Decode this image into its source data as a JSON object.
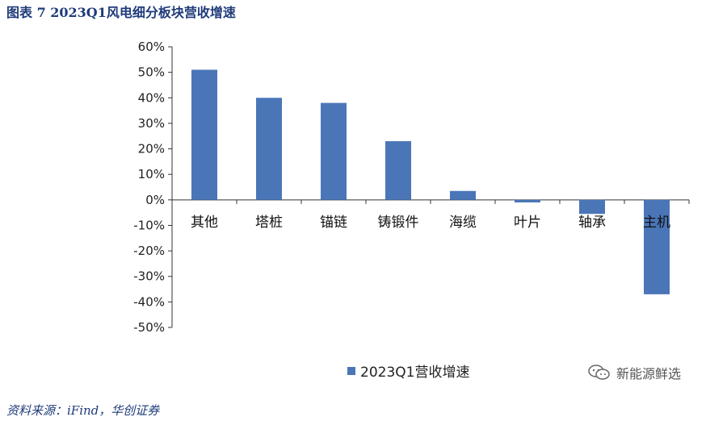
{
  "figure_title": "图表 7  2023Q1风电细分板块营收增速",
  "source": "资料来源：iFind，华创证券",
  "watermark": "新能源鲜选",
  "colors": {
    "bar": "#4a76b8",
    "axis": "#333333",
    "title": "#1f3b7a"
  },
  "chart_data": {
    "type": "bar",
    "categories": [
      "其他",
      "塔桩",
      "锚链",
      "铸锻件",
      "海缆",
      "叶片",
      "轴承",
      "主机"
    ],
    "series": [
      {
        "name": "2023Q1营收增速",
        "values": [
          51,
          40,
          38,
          23,
          3.5,
          -1,
          -5.5,
          -37
        ]
      }
    ],
    "yticks": [
      "60%",
      "50%",
      "40%",
      "30%",
      "20%",
      "10%",
      "0%",
      "-10%",
      "-20%",
      "-30%",
      "-40%",
      "-50%"
    ],
    "ylim": [
      -50,
      60
    ],
    "unit": "%",
    "legend_position": "bottom",
    "grid": false
  }
}
